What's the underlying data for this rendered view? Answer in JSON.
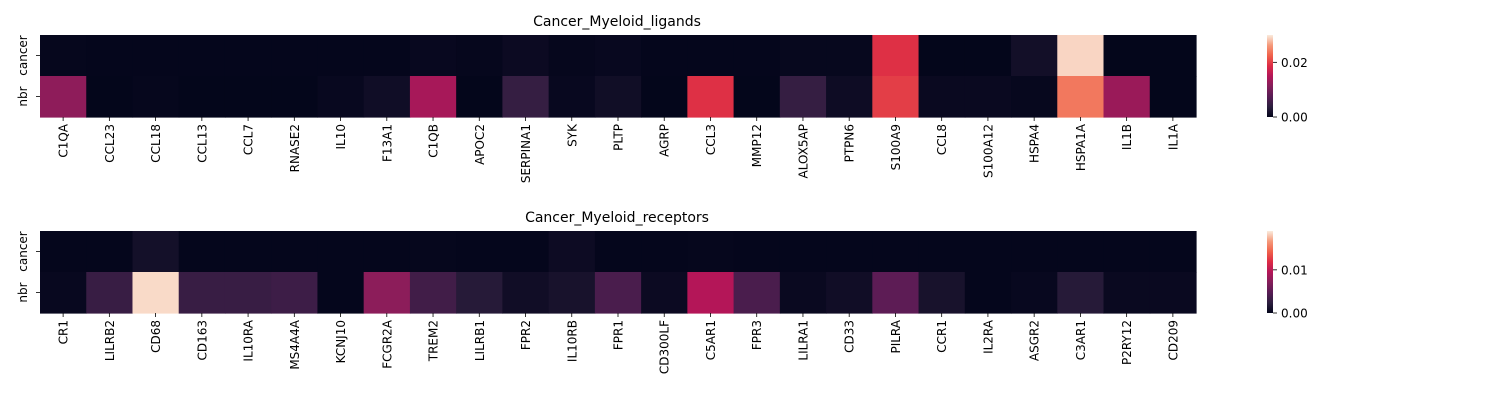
{
  "chart_data": [
    {
      "type": "heatmap",
      "title": "Cancer_Myeloid_ligands",
      "rows": [
        "cancer",
        "nbr"
      ],
      "columns": [
        "C1QA",
        "CCL23",
        "CCL18",
        "CCL13",
        "CCL7",
        "RNASE2",
        "IL10",
        "F13A1",
        "C1QB",
        "APOC2",
        "SERPINA1",
        "SYK",
        "PLTP",
        "AGRP",
        "CCL3",
        "MMP12",
        "ALOX5AP",
        "PTPN6",
        "S100A9",
        "CCL8",
        "S100A12",
        "HSPA4",
        "HSPA1A",
        "IL1B",
        "IL1A"
      ],
      "values": [
        [
          0.0003,
          0.0002,
          0.0002,
          0.0002,
          0.0002,
          0.0002,
          0.0002,
          0.0002,
          0.0005,
          0.0003,
          0.0008,
          0.0003,
          0.0005,
          0.0002,
          0.0002,
          0.0002,
          0.0004,
          0.0004,
          0.019,
          0.0001,
          0.0001,
          0.0015,
          0.029,
          0.0001,
          0.0001
        ],
        [
          0.012,
          0.0001,
          0.0003,
          0.0001,
          0.0001,
          0.0001,
          0.0005,
          0.0012,
          0.014,
          0.0001,
          0.0045,
          0.0005,
          0.0013,
          0.0001,
          0.019,
          0.0001,
          0.0045,
          0.001,
          0.02,
          0.0006,
          0.0006,
          0.0004,
          0.024,
          0.013,
          0.0001
        ]
      ],
      "colorbar": {
        "ticks": [
          0.0,
          0.02
        ],
        "tick_labels": [
          "0.00",
          "0.02"
        ],
        "range": [
          0.0,
          0.03
        ]
      }
    },
    {
      "type": "heatmap",
      "title": "Cancer_Myeloid_receptors",
      "rows": [
        "cancer",
        "nbr"
      ],
      "columns": [
        "CR1",
        "LILRB2",
        "CD68",
        "CD163",
        "IL10RA",
        "MS4A4A",
        "KCNJ10",
        "FCGR2A",
        "TREM2",
        "LILRB1",
        "FPR2",
        "IL10RB",
        "FPR1",
        "CD300LF",
        "C5AR1",
        "FPR3",
        "LILRA1",
        "CD33",
        "PILRA",
        "CCR1",
        "IL2RA",
        "ASGR2",
        "C3AR1",
        "P2RY12",
        "CD209"
      ],
      "values": [
        [
          0.0001,
          0.0001,
          0.001,
          0.0001,
          0.0001,
          0.0001,
          0.0001,
          0.0001,
          0.0002,
          0.0001,
          0.0001,
          0.0006,
          0.0001,
          0.0001,
          0.0002,
          0.0001,
          0.0001,
          0.0001,
          0.0001,
          0.0001,
          0.0001,
          0.0001,
          0.0001,
          0.0001,
          0.0001
        ],
        [
          0.0003,
          0.003,
          0.0185,
          0.003,
          0.003,
          0.0033,
          0.0001,
          0.0075,
          0.0035,
          0.002,
          0.0008,
          0.0012,
          0.004,
          0.0005,
          0.0095,
          0.004,
          0.0004,
          0.0008,
          0.005,
          0.0012,
          0.0001,
          0.0003,
          0.002,
          0.0004,
          0.0004
        ]
      ],
      "colorbar": {
        "ticks": [
          0.0,
          0.01
        ],
        "tick_labels": [
          "0.00",
          "0.01"
        ],
        "range": [
          0.0,
          0.019
        ]
      }
    }
  ]
}
